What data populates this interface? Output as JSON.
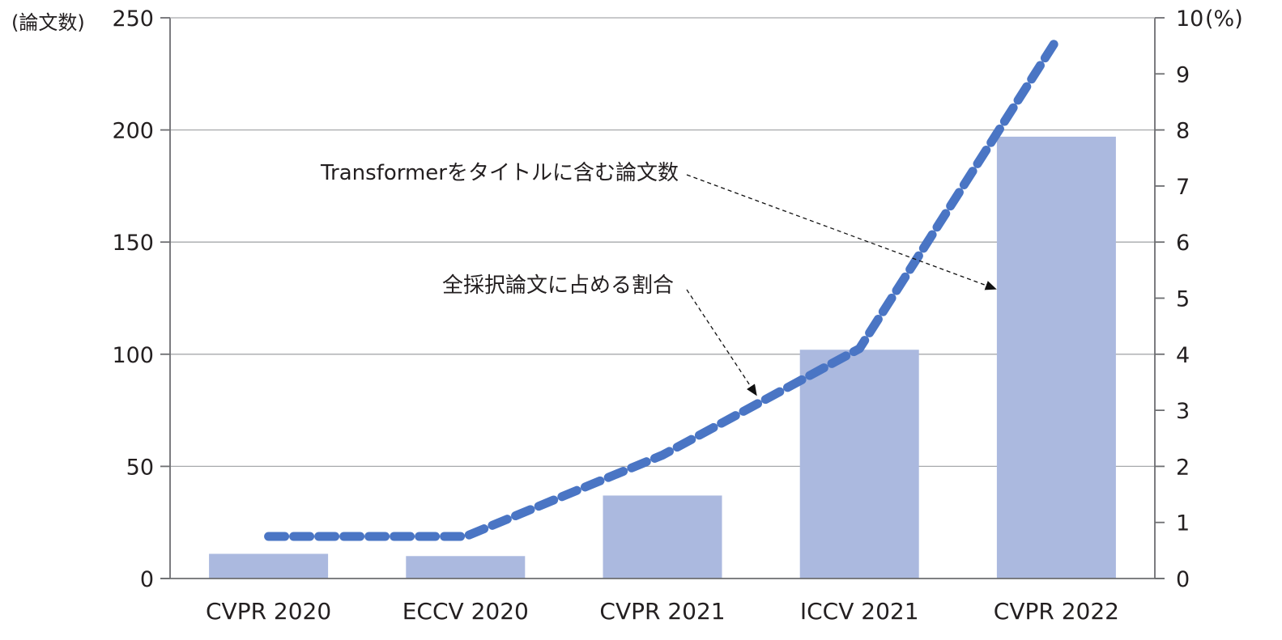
{
  "chart_data": {
    "type": "bar",
    "categories": [
      "CVPR 2020",
      "ECCV 2020",
      "CVPR 2021",
      "ICCV 2021",
      "CVPR 2022"
    ],
    "series": [
      {
        "name": "Transformerをタイトルに含む論文数",
        "type": "bar",
        "axis": "left",
        "values": [
          11,
          10,
          37,
          102,
          197
        ],
        "color": "#abb9df"
      },
      {
        "name": "全採択論文に占める割合",
        "type": "line",
        "axis": "right",
        "style": "dashed",
        "values": [
          0.75,
          0.75,
          2.2,
          4.1,
          9.6
        ],
        "color": "#4a75c4"
      }
    ],
    "y_left": {
      "label": "(論文数)",
      "ylim": [
        0,
        250
      ],
      "ticks": [
        0,
        50,
        100,
        150,
        200,
        250
      ]
    },
    "y_right": {
      "label": "(%)",
      "ylim": [
        0,
        10
      ],
      "ticks": [
        0,
        1,
        2,
        3,
        4,
        5,
        6,
        7,
        8,
        9,
        10
      ]
    },
    "grid": true,
    "annotations": [
      {
        "text": "Transformerをタイトルに含む論文数",
        "target_series": 0,
        "target_category": 4
      },
      {
        "text": "全採択論文に占める割合",
        "target_series": 1,
        "target_category": 2.5
      }
    ]
  }
}
